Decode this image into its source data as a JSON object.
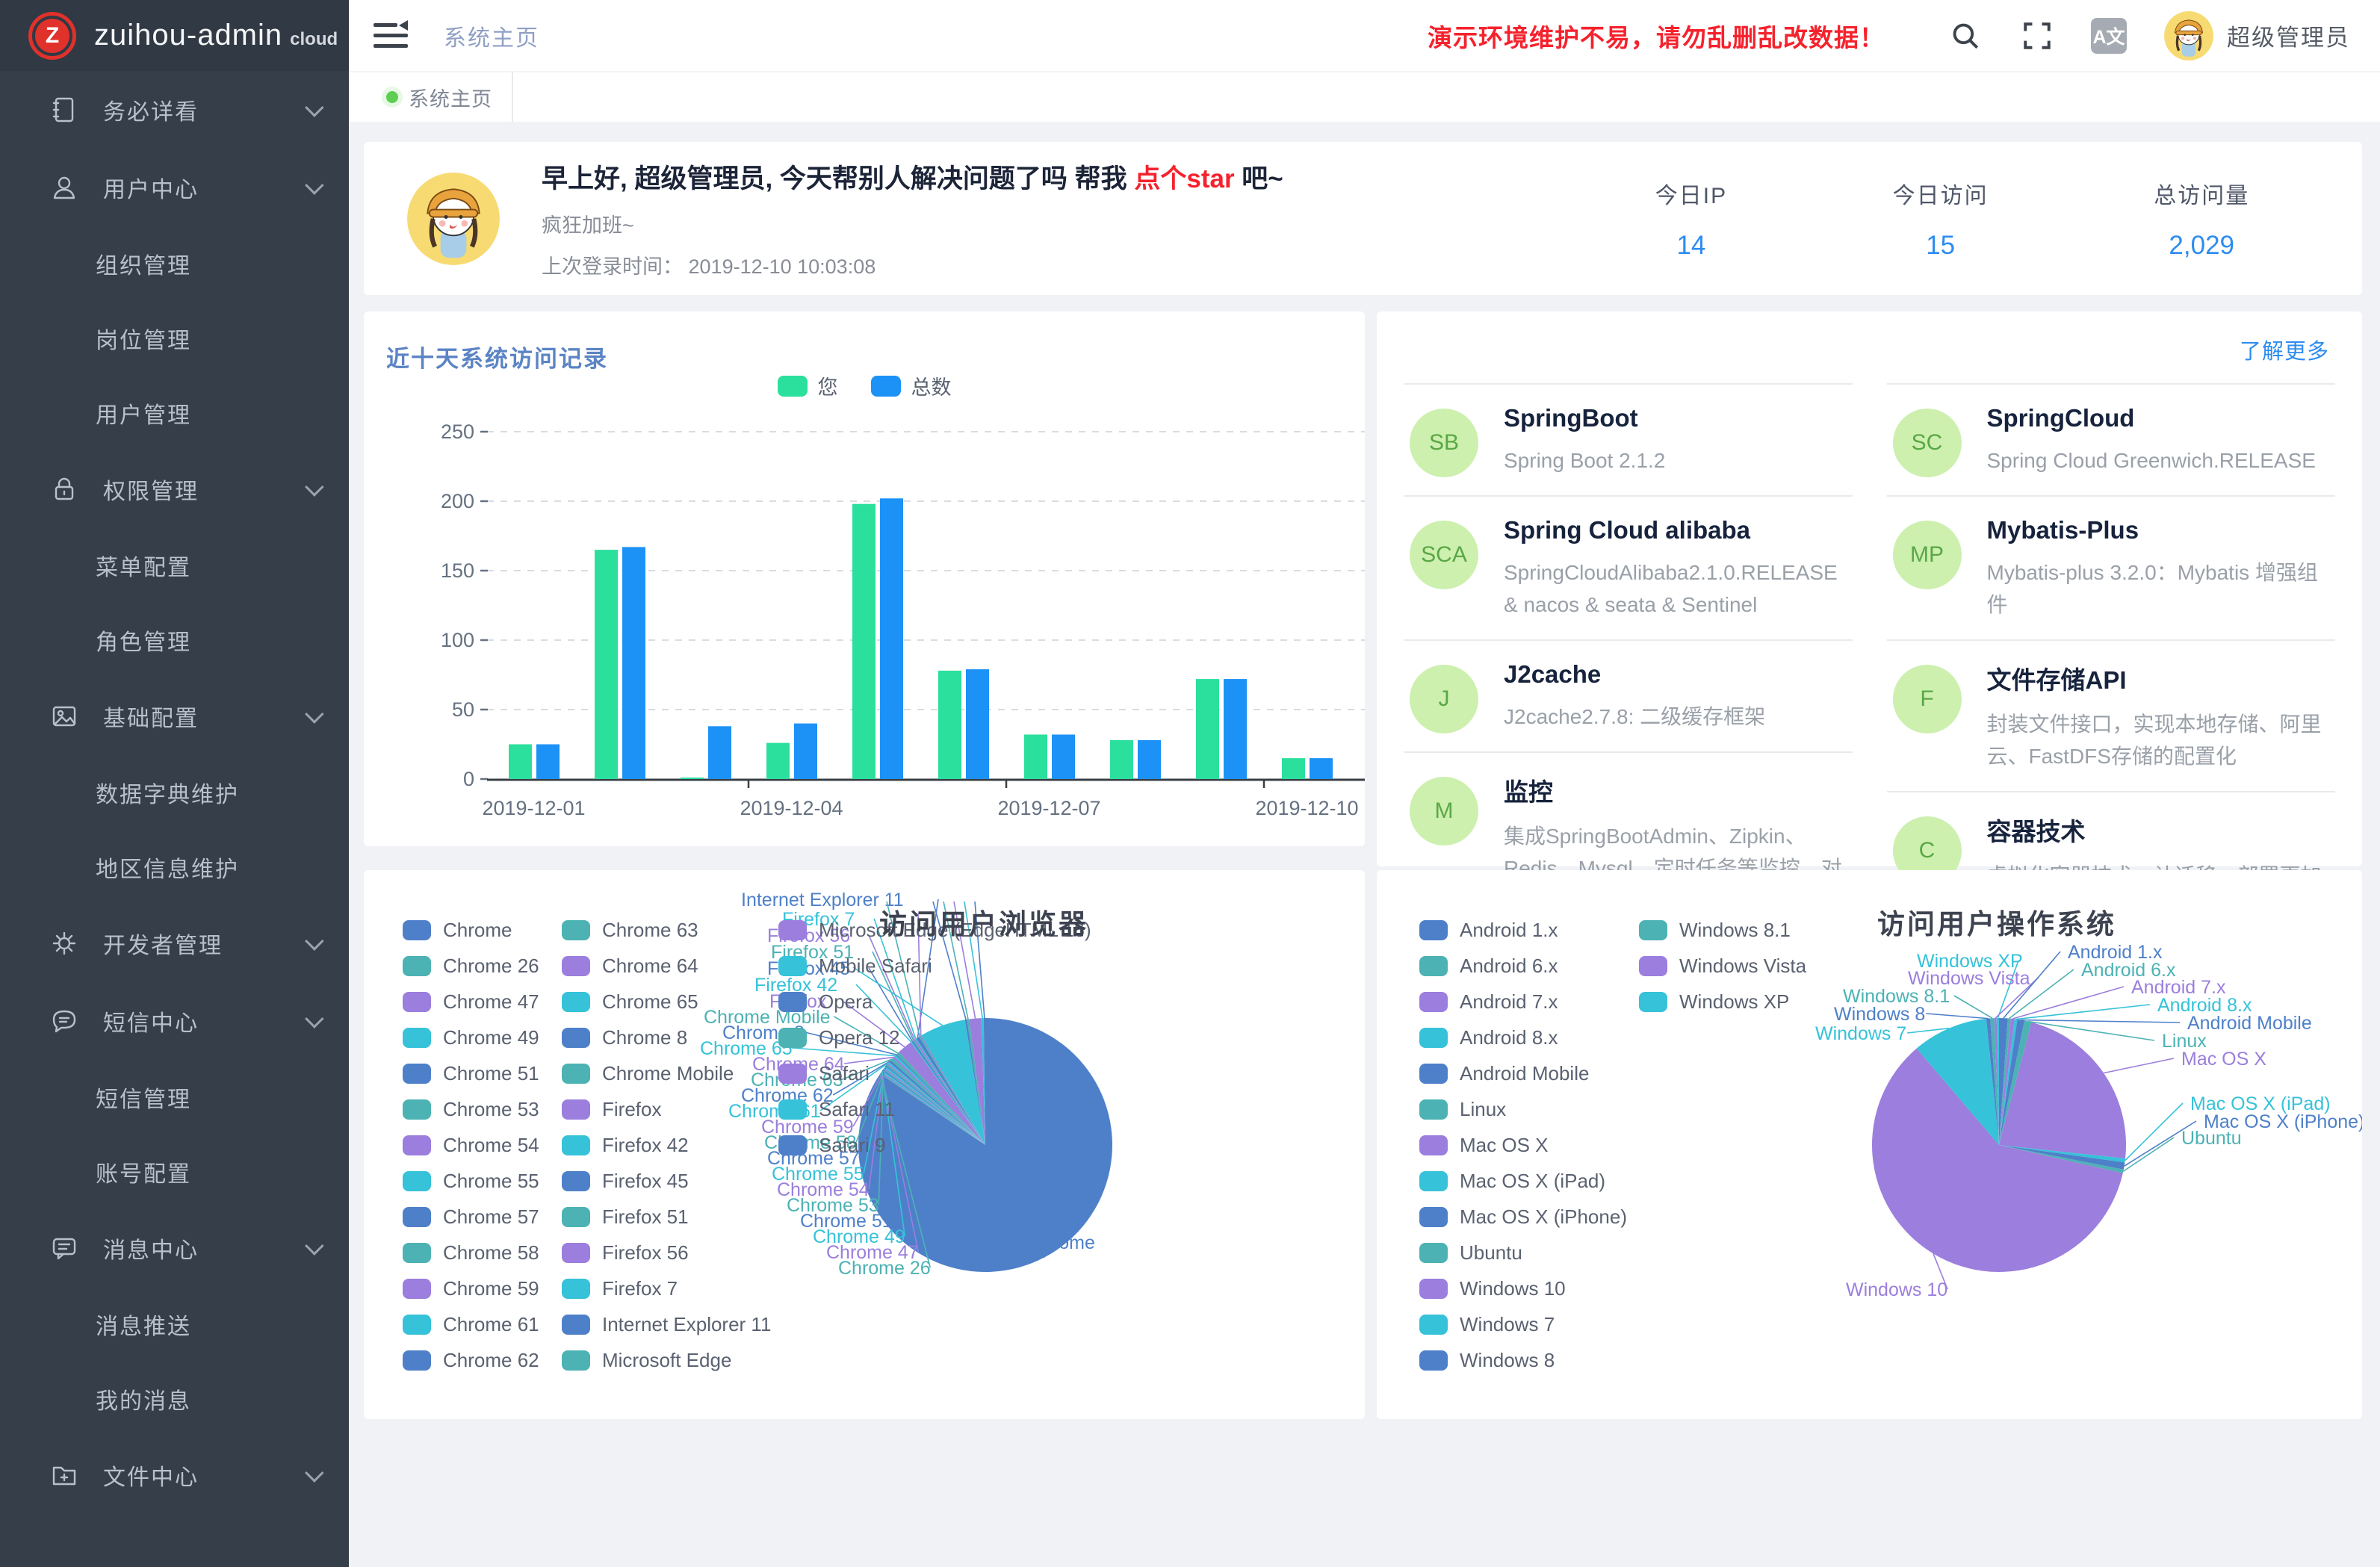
{
  "app": {
    "logo_badge": "Z",
    "logo_title": "zuihou-admin",
    "logo_suffix": "cloud"
  },
  "topbar": {
    "breadcrumb": "系统主页",
    "warning": "演示环境维护不易，请勿乱删乱改数据！",
    "username": "超级管理员",
    "translate_icon_text": "A文"
  },
  "tabs": {
    "active": "系统主页"
  },
  "sidebar": {
    "items": [
      {
        "label": "务必详看",
        "icon": "notebook-icon",
        "children": []
      },
      {
        "label": "用户中心",
        "icon": "user-icon",
        "children": [
          "组织管理",
          "岗位管理",
          "用户管理"
        ]
      },
      {
        "label": "权限管理",
        "icon": "lock-icon",
        "children": [
          "菜单配置",
          "角色管理"
        ]
      },
      {
        "label": "基础配置",
        "icon": "image-icon",
        "children": [
          "数据字典维护",
          "地区信息维护"
        ]
      },
      {
        "label": "开发者管理",
        "icon": "gear-icon",
        "children": []
      },
      {
        "label": "短信中心",
        "icon": "sms-icon",
        "children": [
          "短信管理",
          "账号配置"
        ]
      },
      {
        "label": "消息中心",
        "icon": "message-icon",
        "children": [
          "消息推送",
          "我的消息"
        ]
      },
      {
        "label": "文件中心",
        "icon": "folder-plus-icon",
        "children": []
      }
    ]
  },
  "greeting": {
    "title_prefix": "早上好, 超级管理员, 今天帮别人解决问题了吗 帮我 ",
    "star_text": "点个star",
    "title_suffix": " 吧~",
    "mood": "疯狂加班~",
    "last_login_label": "上次登录时间：",
    "last_login_value": "2019-12-10 10:03:08"
  },
  "stats": [
    {
      "label": "今日IP",
      "value": "14"
    },
    {
      "label": "今日访问",
      "value": "15"
    },
    {
      "label": "总访问量",
      "value": "2,029"
    }
  ],
  "tech": {
    "more_link": "了解更多",
    "columns": [
      [
        {
          "badge": "SB",
          "name": "SpringBoot",
          "desc": "Spring Boot 2.1.2"
        },
        {
          "badge": "SCA",
          "name": "Spring Cloud alibaba",
          "desc": "SpringCloudAlibaba2.1.0.RELEASE & nacos & seata & Sentinel"
        },
        {
          "badge": "J",
          "name": "J2cache",
          "desc": "J2cache2.7.8: 二级缓存框架"
        },
        {
          "badge": "M",
          "name": "监控",
          "desc": "集成SpringBootAdmin、Zipkin、Redis、Mysql、定时任务等监控，对系统进行全方位监控护航"
        }
      ],
      [
        {
          "badge": "SC",
          "name": "SpringCloud",
          "desc": "Spring Cloud Greenwich.RELEASE"
        },
        {
          "badge": "MP",
          "name": "Mybatis-Plus",
          "desc": "Mybatis-plus 3.2.0：Mybatis 增强组件"
        },
        {
          "badge": "F",
          "name": "文件存储API",
          "desc": "封装文件接口，实现本地存储、阿里云、FastDFS存储的配置化"
        },
        {
          "badge": "C",
          "name": "容器技术",
          "desc": "虚拟化容器技术，让迁移、部署更加方便快捷"
        }
      ]
    ]
  },
  "colors": {
    "pie_palette": [
      "#4e80c9",
      "#4cb2b4",
      "#9b7edd",
      "#36c2d9"
    ],
    "bar_green": "#2bdf9d",
    "bar_blue": "#1d92f6",
    "accent_blue": "#2d8cf0",
    "warning_red": "#f5222d"
  },
  "chart_data": [
    {
      "type": "bar",
      "title": "近十天系统访问记录",
      "categories": [
        "2019-12-01",
        "2019-12-02",
        "2019-12-03",
        "2019-12-04",
        "2019-12-05",
        "2019-12-06",
        "2019-12-07",
        "2019-12-08",
        "2019-12-09",
        "2019-12-10"
      ],
      "series": [
        {
          "name": "您",
          "color": "#2bdf9d",
          "values": [
            25,
            165,
            1,
            26,
            198,
            78,
            32,
            28,
            72,
            15
          ]
        },
        {
          "name": "总数",
          "color": "#1d92f6",
          "values": [
            25,
            167,
            38,
            40,
            202,
            79,
            32,
            28,
            72,
            15
          ]
        }
      ],
      "ylim": [
        0,
        250
      ],
      "yticks": [
        0,
        50,
        100,
        150,
        200,
        250
      ],
      "x_labels_shown": [
        "2019-12-01",
        "2019-12-04",
        "2019-12-07",
        "2019-12-10"
      ],
      "grid": true,
      "legend_position": "top-center"
    },
    {
      "type": "pie",
      "title": "访问用户浏览器",
      "legend_position": "left",
      "slices": [
        {
          "name": "Chrome",
          "value": 84.0
        },
        {
          "name": "Chrome 26",
          "value": 0.15
        },
        {
          "name": "Chrome 47",
          "value": 0.15
        },
        {
          "name": "Chrome 49",
          "value": 0.2
        },
        {
          "name": "Chrome 51",
          "value": 0.15
        },
        {
          "name": "Chrome 53",
          "value": 0.15
        },
        {
          "name": "Chrome 54",
          "value": 0.15
        },
        {
          "name": "Chrome 55",
          "value": 0.2
        },
        {
          "name": "Chrome 57",
          "value": 0.15
        },
        {
          "name": "Chrome 58",
          "value": 0.2
        },
        {
          "name": "Chrome 59",
          "value": 0.15
        },
        {
          "name": "Chrome 61",
          "value": 0.2
        },
        {
          "name": "Chrome 62",
          "value": 0.3
        },
        {
          "name": "Chrome 63",
          "value": 0.4
        },
        {
          "name": "Chrome 64",
          "value": 0.25
        },
        {
          "name": "Chrome 65",
          "value": 0.25
        },
        {
          "name": "Chrome 8",
          "value": 0.15
        },
        {
          "name": "Chrome Mobile",
          "value": 0.4
        },
        {
          "name": "Firefox",
          "value": 1.9
        },
        {
          "name": "Firefox 42",
          "value": 0.15
        },
        {
          "name": "Firefox 45",
          "value": 0.2
        },
        {
          "name": "Firefox 51",
          "value": 0.15
        },
        {
          "name": "Firefox 56",
          "value": 0.2
        },
        {
          "name": "Firefox 7",
          "value": 0.15
        },
        {
          "name": "Internet Explorer 11",
          "value": 0.4
        },
        {
          "name": "Microsoft Edge",
          "value": 0.2
        },
        {
          "name": "Microsoft Edge (EdgeHTML 16)",
          "value": 0.15
        },
        {
          "name": "Mobile Safari",
          "value": 5.8
        },
        {
          "name": "Opera",
          "value": 0.25
        },
        {
          "name": "Opera 12",
          "value": 0.3
        },
        {
          "name": "Safari",
          "value": 1.5
        },
        {
          "name": "Safari 11",
          "value": 0.3
        },
        {
          "name": "Safari 9",
          "value": 0.2
        }
      ],
      "legend_columns": [
        [
          "Chrome",
          "Chrome 26",
          "Chrome 47",
          "Chrome 49",
          "Chrome 51",
          "Chrome 53",
          "Chrome 54",
          "Chrome 55",
          "Chrome 57",
          "Chrome 58",
          "Chrome 59",
          "Chrome 61",
          "Chrome 62"
        ],
        [
          "Chrome 63",
          "Chrome 64",
          "Chrome 65",
          "Chrome 8",
          "Chrome Mobile",
          "Firefox",
          "Firefox 42",
          "Firefox 45",
          "Firefox 51",
          "Firefox 56",
          "Firefox 7",
          "Internet Explorer 11",
          "Microsoft Edge"
        ],
        [
          "Microsoft Edge (EdgeHTML 16)",
          "Mobile Safari",
          "Opera",
          "Opera 12",
          "Safari",
          "Safari 11",
          "Safari 9"
        ]
      ]
    },
    {
      "type": "pie",
      "title": "访问用户操作系统",
      "legend_position": "left",
      "slices": [
        {
          "name": "Android 1.x",
          "value": 1.1
        },
        {
          "name": "Android 6.x",
          "value": 0.35
        },
        {
          "name": "Android 7.x",
          "value": 0.5
        },
        {
          "name": "Android 8.x",
          "value": 0.35
        },
        {
          "name": "Android Mobile",
          "value": 0.9
        },
        {
          "name": "Linux",
          "value": 0.9
        },
        {
          "name": "Mac OS X",
          "value": 22.5
        },
        {
          "name": "Mac OS X (iPad)",
          "value": 0.5
        },
        {
          "name": "Mac OS X (iPhone)",
          "value": 0.9
        },
        {
          "name": "Ubuntu",
          "value": 0.45
        },
        {
          "name": "Windows 10",
          "value": 60.0
        },
        {
          "name": "Windows 7",
          "value": 9.6
        },
        {
          "name": "Windows 8",
          "value": 0.5
        },
        {
          "name": "Windows 8.1",
          "value": 0.5
        },
        {
          "name": "Windows Vista",
          "value": 0.3
        },
        {
          "name": "Windows XP",
          "value": 0.3
        }
      ],
      "legend_columns": [
        [
          "Android 1.x",
          "Android 6.x",
          "Android 7.x",
          "Android 8.x",
          "Android Mobile",
          "Linux",
          "Mac OS X",
          "Mac OS X (iPad)",
          "Mac OS X (iPhone)",
          "Ubuntu",
          "Windows 10",
          "Windows 7",
          "Windows 8"
        ],
        [
          "Windows 8.1",
          "Windows Vista",
          "Windows XP"
        ]
      ]
    }
  ]
}
